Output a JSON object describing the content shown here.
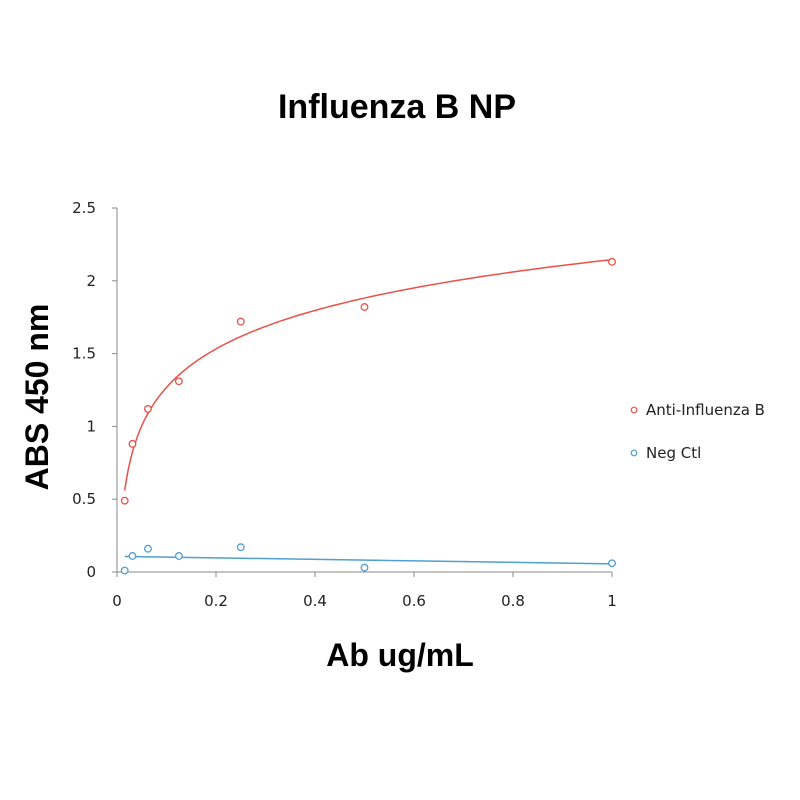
{
  "chart_data": {
    "type": "scatter",
    "title": "Influenza B NP",
    "xlabel": "Ab ug/mL",
    "ylabel": "ABS 450 nm",
    "xlim": [
      0,
      1
    ],
    "ylim": [
      0,
      2.5
    ],
    "x_ticks": [
      "0",
      "0.2",
      "0.4",
      "0.6",
      "0.8",
      "1"
    ],
    "y_ticks": [
      "0",
      "0.5",
      "1",
      "1.5",
      "2",
      "2.5"
    ],
    "grid": false,
    "legend_position": "right",
    "series": [
      {
        "name": "Anti-Influenza B",
        "color": "#e8524a",
        "points": [
          {
            "x": 0.0156,
            "y": 0.49
          },
          {
            "x": 0.03125,
            "y": 0.88
          },
          {
            "x": 0.0625,
            "y": 1.12
          },
          {
            "x": 0.125,
            "y": 1.31
          },
          {
            "x": 0.25,
            "y": 1.72
          },
          {
            "x": 0.5,
            "y": 1.82
          },
          {
            "x": 1,
            "y": 2.13
          }
        ],
        "trendline": "logarithmic"
      },
      {
        "name": "Neg Ctl",
        "color": "#4f9fcf",
        "points": [
          {
            "x": 0.0156,
            "y": 0.01
          },
          {
            "x": 0.03125,
            "y": 0.11
          },
          {
            "x": 0.0625,
            "y": 0.16
          },
          {
            "x": 0.125,
            "y": 0.11
          },
          {
            "x": 0.25,
            "y": 0.17
          },
          {
            "x": 0.5,
            "y": 0.03
          },
          {
            "x": 1,
            "y": 0.06
          }
        ],
        "trendline": "linear"
      }
    ]
  }
}
